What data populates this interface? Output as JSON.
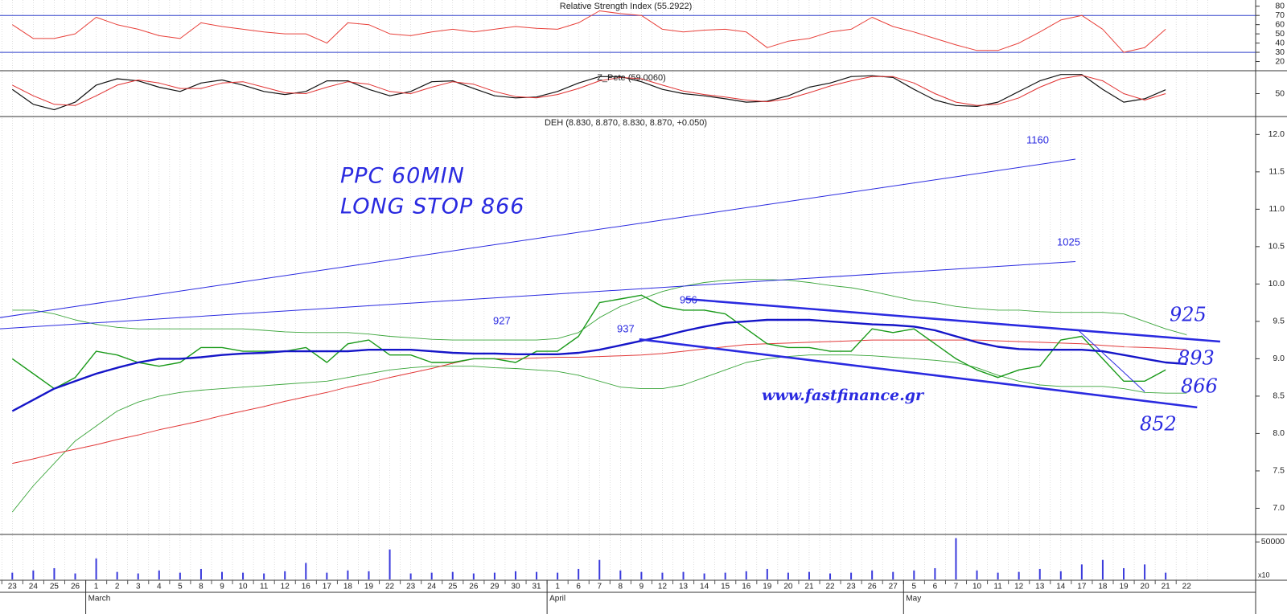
{
  "chart_data": [
    {
      "type": "line",
      "title": "Relative Strength Index (55.2922)",
      "ylim": [
        10,
        85
      ],
      "yticks": [
        20,
        30,
        40,
        50,
        60,
        70,
        80
      ],
      "levels": [
        30,
        70
      ],
      "level_color": "#3344cc",
      "series": [
        {
          "color": "#e8403a",
          "values": [
            60,
            45,
            45,
            50,
            68,
            60,
            55,
            48,
            45,
            62,
            58,
            55,
            52,
            50,
            50,
            40,
            62,
            60,
            50,
            48,
            52,
            55,
            52,
            55,
            58,
            56,
            55,
            62,
            75,
            72,
            70,
            55,
            52,
            54,
            55,
            52,
            35,
            42,
            45,
            52,
            55,
            68,
            58,
            52,
            45,
            38,
            32,
            32,
            40,
            52,
            65,
            70,
            55,
            30,
            35,
            55,
            null
          ]
        }
      ]
    },
    {
      "type": "line",
      "title": "Z_Pete (59.0060)",
      "ylim": [
        0,
        100
      ],
      "yticks": [
        50
      ],
      "series": [
        {
          "color": "#111111",
          "values": [
            60,
            25,
            12,
            30,
            70,
            85,
            80,
            65,
            55,
            75,
            82,
            70,
            55,
            48,
            55,
            80,
            80,
            60,
            45,
            55,
            78,
            80,
            62,
            45,
            40,
            42,
            55,
            75,
            90,
            90,
            78,
            60,
            50,
            45,
            38,
            30,
            32,
            45,
            65,
            75,
            90,
            92,
            88,
            60,
            35,
            22,
            20,
            30,
            55,
            80,
            95,
            95,
            60,
            30,
            38,
            59,
            null
          ]
        },
        {
          "color": "#e03030",
          "values": [
            70,
            45,
            25,
            22,
            45,
            70,
            82,
            75,
            62,
            62,
            75,
            78,
            65,
            52,
            50,
            65,
            78,
            72,
            55,
            50,
            65,
            78,
            72,
            55,
            43,
            40,
            48,
            62,
            80,
            88,
            85,
            70,
            56,
            48,
            42,
            35,
            31,
            38,
            52,
            68,
            80,
            90,
            90,
            75,
            50,
            30,
            22,
            25,
            40,
            65,
            85,
            93,
            80,
            50,
            35,
            50,
            null
          ]
        }
      ]
    },
    {
      "type": "line",
      "title": "DEH (8.830, 8.870, 8.830, 8.870, +0.050)",
      "ylim": [
        6.65,
        12.24
      ],
      "yticks": [
        {
          "value": 7,
          "label": "7.0"
        },
        7.5,
        {
          "value": 8,
          "label": "8.0"
        },
        8.5,
        {
          "value": 9,
          "label": "9.0"
        },
        9.5,
        {
          "value": 10,
          "label": "10.0"
        },
        10.5,
        {
          "value": 11,
          "label": "11.0"
        },
        11.5,
        {
          "value": 12,
          "label": "12.0"
        }
      ],
      "series": [
        {
          "color": "#3aa53a",
          "values": [
            9.65,
            9.65,
            9.6,
            9.52,
            9.46,
            9.42,
            9.4,
            9.4,
            9.4,
            9.4,
            9.4,
            9.4,
            9.38,
            9.36,
            9.35,
            9.35,
            9.35,
            9.33,
            9.3,
            9.28,
            9.26,
            9.25,
            9.25,
            9.25,
            9.25,
            9.25,
            9.27,
            9.35,
            9.55,
            9.7,
            9.8,
            9.9,
            9.97,
            10.02,
            10.05,
            10.06,
            10.06,
            10.05,
            10.02,
            9.98,
            9.95,
            9.9,
            9.84,
            9.78,
            9.75,
            9.7,
            9.67,
            9.65,
            9.65,
            9.63,
            9.62,
            9.62,
            9.62,
            9.6,
            9.5,
            9.4,
            9.32
          ]
        },
        {
          "color": "#3aa53a",
          "values": [
            6.95,
            7.3,
            7.6,
            7.9,
            8.1,
            8.3,
            8.42,
            8.5,
            8.55,
            8.58,
            8.6,
            8.62,
            8.64,
            8.66,
            8.68,
            8.7,
            8.75,
            8.8,
            8.85,
            8.88,
            8.9,
            8.9,
            8.9,
            8.88,
            8.87,
            8.85,
            8.83,
            8.78,
            8.7,
            8.62,
            8.6,
            8.6,
            8.65,
            8.75,
            8.85,
            8.95,
            9.0,
            9.03,
            9.05,
            9.05,
            9.05,
            9.04,
            9.02,
            9.0,
            8.98,
            8.95,
            8.88,
            8.78,
            8.7,
            8.65,
            8.63,
            8.63,
            8.63,
            8.6,
            8.55,
            8.54,
            8.54
          ]
        },
        {
          "color": "#e23a3a",
          "values": [
            7.6,
            7.66,
            7.73,
            7.79,
            7.85,
            7.92,
            7.98,
            8.05,
            8.11,
            8.17,
            8.24,
            8.3,
            8.36,
            8.43,
            8.49,
            8.55,
            8.62,
            8.68,
            8.75,
            8.81,
            8.87,
            8.94,
            9.0,
            9.0,
            9.0,
            9.01,
            9.02,
            9.02,
            9.03,
            9.04,
            9.05,
            9.07,
            9.1,
            9.13,
            9.16,
            9.19,
            9.2,
            9.21,
            9.22,
            9.23,
            9.24,
            9.25,
            9.25,
            9.25,
            9.25,
            9.25,
            9.25,
            9.24,
            9.23,
            9.22,
            9.21,
            9.2,
            9.18,
            9.16,
            9.15,
            9.14,
            9.12
          ]
        },
        {
          "color": "#1a9a1a",
          "values": [
            9.0,
            8.8,
            8.6,
            8.75,
            9.1,
            9.05,
            8.95,
            8.9,
            8.95,
            9.15,
            9.15,
            9.1,
            9.1,
            9.1,
            9.15,
            8.95,
            9.2,
            9.25,
            9.05,
            9.05,
            8.95,
            8.95,
            9.0,
            9.0,
            8.95,
            9.1,
            9.1,
            9.3,
            9.75,
            9.8,
            9.85,
            9.7,
            9.65,
            9.65,
            9.6,
            9.4,
            9.2,
            9.15,
            9.15,
            9.1,
            9.1,
            9.4,
            9.35,
            9.4,
            9.2,
            9.0,
            8.85,
            8.75,
            8.85,
            8.9,
            9.25,
            9.3,
            9.0,
            8.7,
            8.7,
            8.85,
            null
          ]
        },
        {
          "color": "#1515c8",
          "values": [
            8.3,
            8.45,
            8.6,
            8.7,
            8.8,
            8.88,
            8.95,
            9.0,
            9.0,
            9.02,
            9.05,
            9.07,
            9.08,
            9.1,
            9.1,
            9.1,
            9.1,
            9.12,
            9.12,
            9.12,
            9.1,
            9.08,
            9.07,
            9.07,
            9.06,
            9.06,
            9.06,
            9.08,
            9.12,
            9.18,
            9.24,
            9.3,
            9.37,
            9.43,
            9.48,
            9.5,
            9.52,
            9.52,
            9.52,
            9.5,
            9.48,
            9.46,
            9.45,
            9.43,
            9.38,
            9.3,
            9.22,
            9.16,
            9.13,
            9.12,
            9.12,
            9.12,
            9.1,
            9.05,
            9.0,
            8.95,
            8.93
          ]
        }
      ],
      "trendline_color": "#2a2ae0",
      "trendlines": [
        {
          "from": [
            -0.6,
            9.55
          ],
          "to": [
            50.7,
            11.67
          ]
        },
        {
          "from": [
            -0.6,
            9.4
          ],
          "to": [
            50.7,
            10.3
          ]
        },
        {
          "from": [
            32.1,
            9.8
          ],
          "to": [
            57.6,
            9.23
          ]
        },
        {
          "from": [
            29.9,
            9.26
          ],
          "to": [
            56.5,
            8.35
          ]
        },
        {
          "from": [
            50.8,
            9.39
          ],
          "to": [
            54,
            8.56
          ]
        }
      ],
      "annotations": [
        "PPC  60MIN",
        "LONG STOP 866",
        "www.fastfinance.gr",
        "1160",
        "1025",
        "927",
        "937",
        "956",
        "925",
        "893",
        "866",
        "852"
      ]
    },
    {
      "type": "bar",
      "color": "#3a3adc",
      "ylim": [
        0,
        60000
      ],
      "yticks": [
        50000
      ],
      "unit_label": "x10",
      "categories": [
        "23",
        "24",
        "25",
        "26",
        "1",
        "2",
        "3",
        "4",
        "5",
        "8",
        "9",
        "10",
        "11",
        "12",
        "16",
        "17",
        "18",
        "19",
        "22",
        "23",
        "24",
        "25",
        "26",
        "29",
        "30",
        "31",
        "1",
        "6",
        "7",
        "8",
        "9",
        "12",
        "13",
        "14",
        "15",
        "16",
        "19",
        "20",
        "21",
        "22",
        "23",
        "26",
        "27",
        "5",
        "6",
        "7",
        "10",
        "11",
        "12",
        "13",
        "14",
        "17",
        "18",
        "19",
        "20",
        "21",
        "22"
      ],
      "months": [
        {
          "label": "March",
          "start": 4
        },
        {
          "label": "April",
          "start": 26
        },
        {
          "label": "May",
          "start": 43
        }
      ],
      "values": [
        9000,
        12000,
        15000,
        8000,
        28000,
        10000,
        8000,
        12000,
        9000,
        14000,
        10000,
        9000,
        8000,
        11000,
        22000,
        9000,
        12000,
        11000,
        40000,
        8000,
        9000,
        10000,
        8000,
        9000,
        11000,
        10000,
        9000,
        14000,
        26000,
        12000,
        10000,
        9000,
        10000,
        8000,
        9000,
        11000,
        14000,
        9000,
        10000,
        8000,
        9000,
        12000,
        10000,
        12000,
        15000,
        55000,
        12000,
        9000,
        10000,
        14000,
        11000,
        20000,
        26000,
        15000,
        20000,
        9000,
        null
      ]
    }
  ]
}
